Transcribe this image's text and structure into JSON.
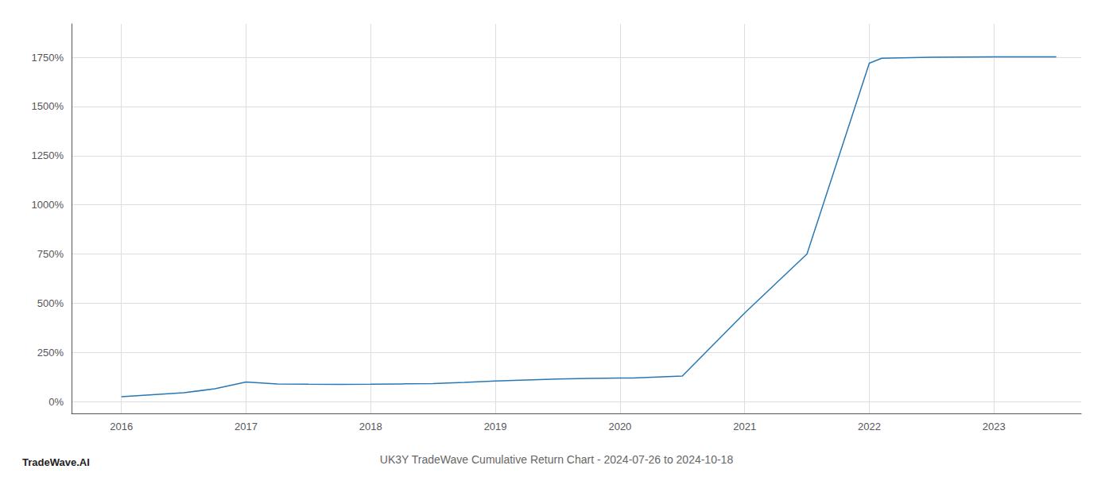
{
  "chart_data": {
    "type": "line",
    "title": "UK3Y TradeWave Cumulative Return Chart - 2024-07-26 to 2024-10-18",
    "annotations": [
      "TradeWave.AI"
    ],
    "color": "#2878b5",
    "x": [
      2016.0,
      2016.25,
      2016.5,
      2016.75,
      2017.0,
      2017.25,
      2017.5,
      2017.75,
      2018.0,
      2018.25,
      2018.5,
      2018.75,
      2019.0,
      2019.25,
      2019.5,
      2019.75,
      2020.0,
      2020.1,
      2020.5,
      2021.0,
      2021.5,
      2022.0,
      2022.1,
      2022.5,
      2023.0,
      2023.5
    ],
    "values": [
      25,
      35,
      45,
      65,
      100,
      90,
      88,
      87,
      88,
      90,
      92,
      98,
      105,
      110,
      115,
      118,
      120,
      120,
      130,
      450,
      750,
      1720,
      1745,
      1750,
      1752,
      1752
    ],
    "xlim": [
      2015.6,
      2023.7
    ],
    "xticks": [
      2016,
      2017,
      2018,
      2019,
      2020,
      2021,
      2022,
      2023
    ],
    "ylim": [
      -60,
      1920
    ],
    "yticks": [
      {
        "value": 0,
        "label": "0%"
      },
      {
        "value": 250,
        "label": "250%"
      },
      {
        "value": 500,
        "label": "500%"
      },
      {
        "value": 750,
        "label": "750%"
      },
      {
        "value": 1000,
        "label": "1000%"
      },
      {
        "value": 1250,
        "label": "1250%"
      },
      {
        "value": 1500,
        "label": "1500%"
      },
      {
        "value": 1750,
        "label": "1750%"
      }
    ],
    "grid": true
  }
}
